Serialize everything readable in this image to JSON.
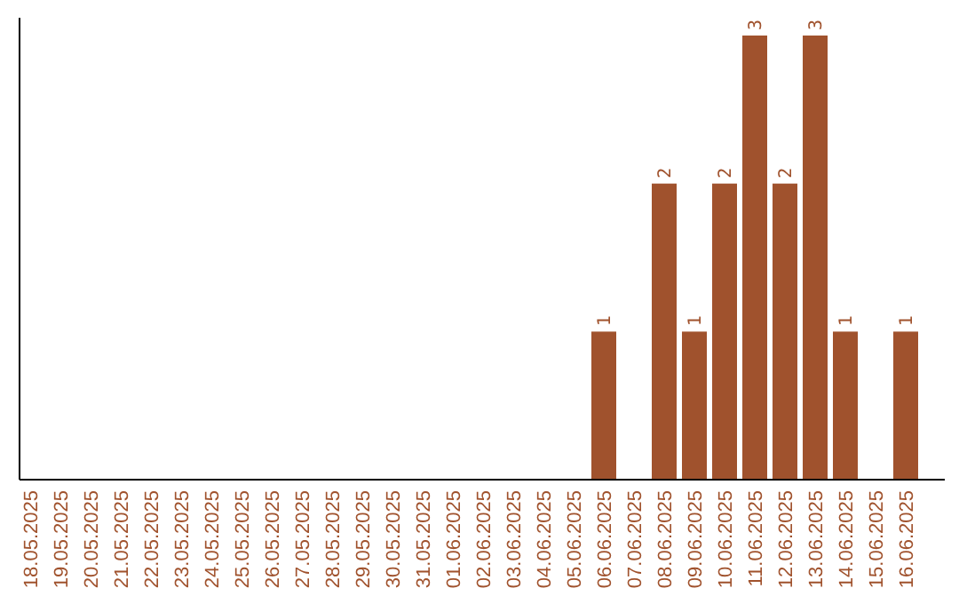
{
  "chart_data": {
    "type": "bar",
    "categories": [
      "18.05.2025",
      "19.05.2025",
      "20.05.2025",
      "21.05.2025",
      "22.05.2025",
      "23.05.2025",
      "24.05.2025",
      "25.05.2025",
      "26.05.2025",
      "27.05.2025",
      "28.05.2025",
      "29.05.2025",
      "30.05.2025",
      "31.05.2025",
      "01.06.2025",
      "02.06.2025",
      "03.06.2025",
      "04.06.2025",
      "05.06.2025",
      "06.06.2025",
      "07.06.2025",
      "08.06.2025",
      "09.06.2025",
      "10.06.2025",
      "11.06.2025",
      "12.06.2025",
      "13.06.2025",
      "14.06.2025",
      "15.06.2025",
      "16.06.2025"
    ],
    "values": [
      null,
      null,
      null,
      null,
      null,
      null,
      null,
      null,
      null,
      null,
      null,
      null,
      null,
      null,
      null,
      null,
      null,
      null,
      null,
      1,
      null,
      2,
      1,
      2,
      3,
      2,
      3,
      1,
      null,
      1
    ],
    "data_labels": true,
    "color": "#a0522d",
    "tick_labels": "x"
  }
}
